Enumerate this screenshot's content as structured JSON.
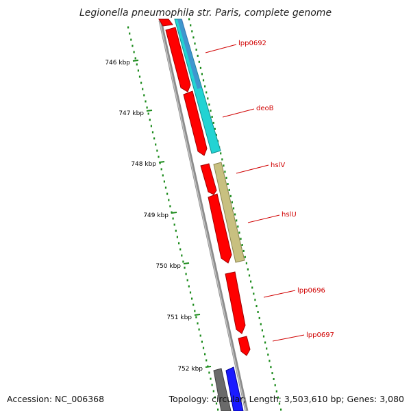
{
  "title": "Legionella pneumophila str. Paris, complete genome",
  "footer": {
    "accession": "Accession: NC_006368",
    "summary": "Topology: circular; Length: 3,503,610 bp; Genes: 3,080"
  },
  "ticks": [
    {
      "label": "746 kbp"
    },
    {
      "label": "747 kbp"
    },
    {
      "label": "748 kbp"
    },
    {
      "label": "749 kbp"
    },
    {
      "label": "750 kbp"
    },
    {
      "label": "751 kbp"
    },
    {
      "label": "752 kbp"
    }
  ],
  "gene_labels": [
    {
      "name": "lpp0692"
    },
    {
      "name": "deoB"
    },
    {
      "name": "hslV"
    },
    {
      "name": "hslU"
    },
    {
      "name": "lpp0696"
    },
    {
      "name": "lpp0697"
    }
  ],
  "colors": {
    "cds": "#ff0000",
    "feature_cyan": "#22d3d3",
    "feature_khaki": "#c8c080",
    "feature_blue": "#1a1aff",
    "feature_gray": "#6a6a6a",
    "backbone": "#8c8c8c",
    "dots": "#1a8a1a",
    "label_red": "#d00000"
  }
}
